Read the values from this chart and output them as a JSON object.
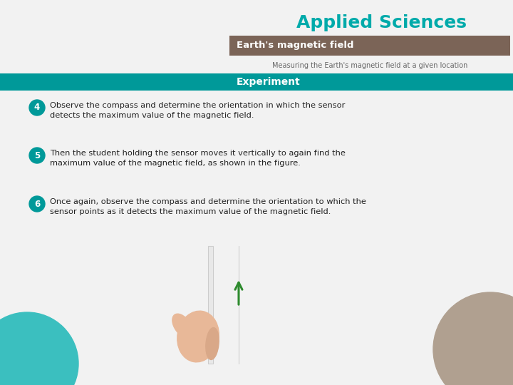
{
  "title": "Applied Sciences",
  "title_color": "#00AAAA",
  "subtitle_bar_text": "Earth's magnetic field",
  "subtitle_bar_color": "#7B6457",
  "subtitle_bar_text_color": "#FFFFFF",
  "subtitle2_text": "Measuring the Earth's magnetic field at a given location",
  "subtitle2_color": "#666666",
  "experiment_bar_text": "Experiment",
  "experiment_bar_color": "#009999",
  "experiment_bar_text_color": "#FFFFFF",
  "step4_num": "4",
  "step4_text_line1": "Observe the compass and determine the orientation in which the sensor",
  "step4_text_line2": "detects the maximum value of the magnetic field.",
  "step5_num": "5",
  "step5_text_line1": "Then the student holding the sensor moves it vertically to again find the",
  "step5_text_line2": "maximum value of the magnetic field, as shown in the figure.",
  "step6_num": "6",
  "step6_text_line1": "Once again, observe the compass and determine the orientation to which the",
  "step6_text_line2": "sensor points as it detects the maximum value of the magnetic field.",
  "step_circle_color": "#009999",
  "step_text_color": "#222222",
  "bg_color": "#F2F2F2",
  "teal_circle_color": "#3BBFBF",
  "tan_circle_color": "#B0A090",
  "arrow_color": "#2E8B2E",
  "rod_color": "#E8E8E8",
  "rod_border_color": "#CCCCCC",
  "hand_color": "#E8B898"
}
